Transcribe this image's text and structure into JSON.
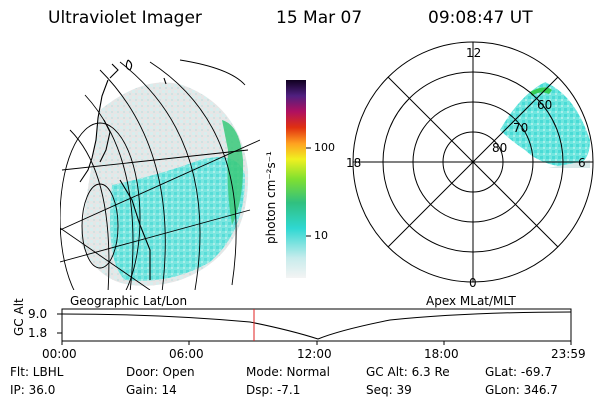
{
  "header": {
    "instrument": "Ultraviolet Imager",
    "date": "15 Mar 07",
    "time": "09:08:47 UT"
  },
  "colorbar": {
    "unit_label": "photon cm⁻²s⁻¹",
    "tick_labels": [
      "100",
      "10"
    ]
  },
  "polar_plot": {
    "mlt_labels": [
      "12",
      "18",
      "6",
      "0"
    ],
    "mlat_labels": [
      "60",
      "70",
      "80"
    ]
  },
  "panels": {
    "left_caption": "Geographic Lat/Lon",
    "right_caption": "Apex MLat/MLT"
  },
  "altitude_plot": {
    "ylabel": "GC Alt",
    "yticks": [
      "9.0",
      "1.8"
    ],
    "xticks": [
      "00:00",
      "06:00",
      "12:00",
      "18:00",
      "23:59"
    ]
  },
  "info": {
    "filter": "Flt: LBHL",
    "ip": "IP: 36.0",
    "door": "Door: Open",
    "gain": "Gain: 14",
    "mode": "Mode: Normal",
    "dsp": "Dsp:   -7.1",
    "gc_alt": "GC Alt: 6.3 Re",
    "seq": "Seq: 39",
    "glat": "GLat: -69.7",
    "glon": "GLon: 346.7"
  }
}
